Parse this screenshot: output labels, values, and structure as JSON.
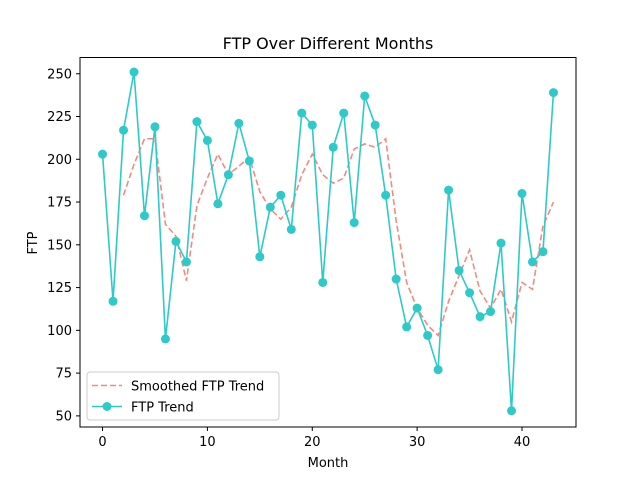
{
  "chart_data": {
    "type": "line",
    "title": "FTP Over Different Months",
    "xlabel": "Month",
    "ylabel": "FTP",
    "xlim": [
      -2.15,
      45.15
    ],
    "ylim": [
      43.5,
      259.5
    ],
    "xticks": [
      0,
      10,
      20,
      30,
      40
    ],
    "yticks": [
      50,
      75,
      100,
      125,
      150,
      175,
      200,
      225,
      250
    ],
    "grid": false,
    "legend_position": "lower-left",
    "colors": {
      "trend": "#2ec9c9",
      "smoothed": "#f28a80"
    },
    "series": [
      {
        "name": "Smoothed FTP Trend",
        "style": "dashed",
        "x": [
          2,
          3,
          4,
          5,
          6,
          7,
          8,
          9,
          10,
          11,
          12,
          13,
          14,
          15,
          16,
          17,
          18,
          19,
          20,
          21,
          22,
          23,
          24,
          25,
          26,
          27,
          28,
          29,
          30,
          31,
          32,
          33,
          34,
          35,
          36,
          37,
          38,
          39,
          40,
          41,
          42,
          43
        ],
        "y": [
          179,
          197,
          212,
          212,
          162,
          155,
          129,
          173,
          189,
          203,
          191,
          196,
          201,
          181,
          171,
          165,
          172,
          191,
          203,
          191,
          186,
          189,
          206,
          209,
          207,
          212,
          164,
          128,
          113,
          103,
          97,
          117,
          132,
          147,
          123,
          113,
          124,
          105,
          128,
          124,
          161,
          175
        ]
      },
      {
        "name": "FTP Trend",
        "style": "solid-markers",
        "x": [
          0,
          1,
          2,
          3,
          4,
          5,
          6,
          7,
          8,
          9,
          10,
          11,
          12,
          13,
          14,
          15,
          16,
          17,
          18,
          19,
          20,
          21,
          22,
          23,
          24,
          25,
          26,
          27,
          28,
          29,
          30,
          31,
          32,
          33,
          34,
          35,
          36,
          37,
          38,
          39,
          40,
          41,
          42,
          43
        ],
        "y": [
          203,
          117,
          217,
          251,
          167,
          219,
          95,
          152,
          140,
          222,
          211,
          174,
          191,
          221,
          199,
          143,
          172,
          179,
          159,
          227,
          220,
          128,
          207,
          227,
          163,
          237,
          220,
          179,
          130,
          102,
          113,
          97,
          77,
          182,
          135,
          122,
          108,
          111,
          151,
          53,
          180,
          140,
          146,
          239
        ]
      }
    ]
  }
}
